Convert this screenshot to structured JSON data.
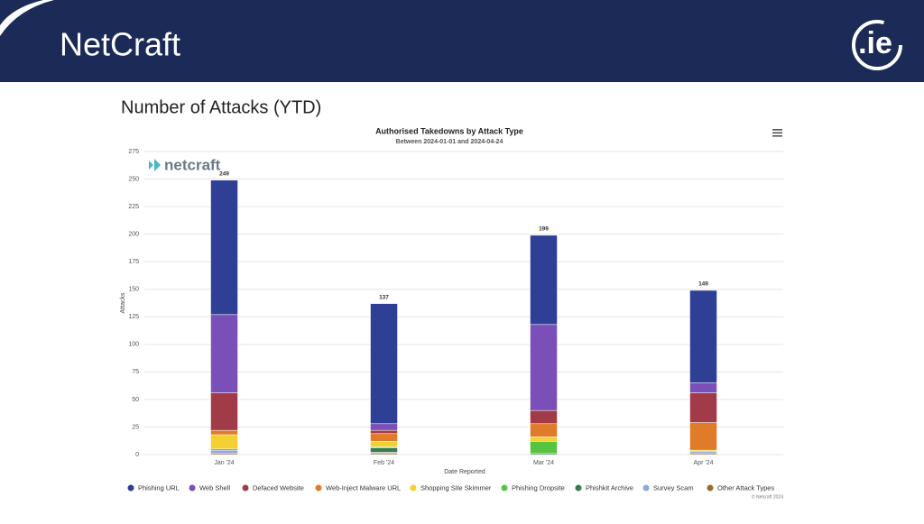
{
  "header": {
    "title": "NetCraft",
    "brand": ".ie"
  },
  "subtitle": "Number of Attacks (YTD)",
  "chart_data": {
    "type": "stacked_bar",
    "title": "Authorised Takedowns by Attack Type",
    "subtitle": "Between 2024-01-01 and 2024-04-24",
    "watermark": "netcraft",
    "credit": "© Netcraft 2024",
    "x_label": "Date Reported",
    "y_label": "Attacks",
    "categories": [
      "Jan '24",
      "Feb '24",
      "Mar '24",
      "Apr '24"
    ],
    "totals": [
      249,
      137,
      199,
      149
    ],
    "ylim": [
      0,
      275
    ],
    "yticks": [
      0,
      25,
      50,
      75,
      100,
      125,
      150,
      175,
      200,
      225,
      250,
      275
    ],
    "grid": true,
    "series": [
      {
        "name": "Phishing URL",
        "color": "#2f3f96",
        "values": [
          122,
          109,
          81,
          84
        ]
      },
      {
        "name": "Web Shell",
        "color": "#7b4fb8",
        "values": [
          71,
          6,
          78,
          9
        ]
      },
      {
        "name": "Defaced Website",
        "color": "#a23b48",
        "values": [
          34,
          3,
          12,
          27
        ]
      },
      {
        "name": "Web-Inject Malware URL",
        "color": "#e07b2a",
        "values": [
          4,
          7,
          12,
          25
        ]
      },
      {
        "name": "Shopping Site Skimmer",
        "color": "#f5d033",
        "values": [
          13,
          5,
          4,
          1
        ]
      },
      {
        "name": "Phishing Dropsite",
        "color": "#56c440",
        "values": [
          0,
          1,
          11,
          0
        ]
      },
      {
        "name": "Phishkit Archive",
        "color": "#3c7a52",
        "values": [
          1,
          4,
          1,
          0
        ]
      },
      {
        "name": "Survey Scam",
        "color": "#8fa8e0",
        "values": [
          3,
          1,
          0,
          2
        ]
      },
      {
        "name": "Other Attack Types",
        "color": "#9b6b2a",
        "values": [
          1,
          1,
          0,
          1
        ]
      }
    ]
  }
}
